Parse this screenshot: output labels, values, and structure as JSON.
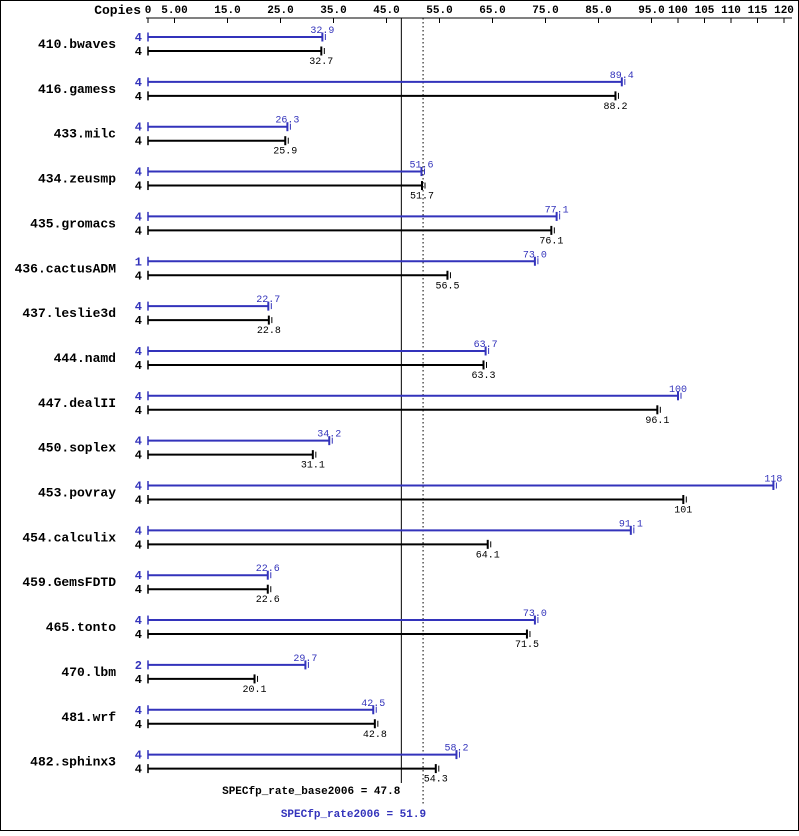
{
  "header": {
    "copies_label": "Copies"
  },
  "summary": {
    "base_label": "SPECfp_rate_base2006 = 47.8",
    "peak_label": "SPECfp_rate2006 = 51.9",
    "base_value": 47.8,
    "peak_value": 51.9
  },
  "colors": {
    "peak_blue": "#3333bb",
    "base_black": "#000000"
  },
  "axis": {
    "xlim": [
      0,
      120
    ],
    "ticks": [
      {
        "value": 0,
        "label": "0"
      },
      {
        "value": 5,
        "label": "5.00"
      },
      {
        "value": 15,
        "label": "15.0"
      },
      {
        "value": 25,
        "label": "25.0"
      },
      {
        "value": 35,
        "label": "35.0"
      },
      {
        "value": 45,
        "label": "45.0"
      },
      {
        "value": 55,
        "label": "55.0"
      },
      {
        "value": 65,
        "label": "65.0"
      },
      {
        "value": 75,
        "label": "75.0"
      },
      {
        "value": 85,
        "label": "85.0"
      },
      {
        "value": 95,
        "label": "95.0"
      },
      {
        "value": 100,
        "label": "100"
      },
      {
        "value": 105,
        "label": "105"
      },
      {
        "value": 110,
        "label": "110"
      },
      {
        "value": 115,
        "label": "115"
      },
      {
        "value": 120,
        "label": "120"
      }
    ]
  },
  "chart_data": {
    "type": "bar",
    "orientation": "horizontal",
    "title": "",
    "xlim": [
      0,
      120
    ],
    "categories": [
      "410.bwaves",
      "416.gamess",
      "433.milc",
      "434.zeusmp",
      "435.gromacs",
      "436.cactusADM",
      "437.leslie3d",
      "444.namd",
      "447.dealII",
      "450.soplex",
      "453.povray",
      "454.calculix",
      "459.GemsFDTD",
      "465.tonto",
      "470.lbm",
      "481.wrf",
      "482.sphinx3"
    ],
    "series": [
      {
        "key": "peak",
        "name": "SPECfp_rate2006 (peak)",
        "color": "#3333bb",
        "copies": [
          "4",
          "4",
          "4",
          "4",
          "4",
          "1",
          "4",
          "4",
          "4",
          "4",
          "4",
          "4",
          "4",
          "4",
          "2",
          "4",
          "4"
        ],
        "values": [
          32.9,
          89.4,
          26.3,
          51.6,
          77.1,
          73.0,
          22.7,
          63.7,
          100,
          34.2,
          118,
          91.1,
          22.6,
          73.0,
          29.7,
          42.5,
          58.2
        ],
        "labels": [
          "32.9",
          "89.4",
          "26.3",
          "51.6",
          "77.1",
          "73.0",
          "22.7",
          "63.7",
          "100",
          "34.2",
          "118",
          "91.1",
          "22.6",
          "73.0",
          "29.7",
          "42.5",
          "58.2"
        ]
      },
      {
        "key": "base",
        "name": "SPECfp_rate_base2006 (base)",
        "color": "#000000",
        "copies": [
          "4",
          "4",
          "4",
          "4",
          "4",
          "4",
          "4",
          "4",
          "4",
          "4",
          "4",
          "4",
          "4",
          "4",
          "4",
          "4",
          "4"
        ],
        "values": [
          32.7,
          88.2,
          25.9,
          51.7,
          76.1,
          56.5,
          22.8,
          63.3,
          96.1,
          31.1,
          101,
          64.1,
          22.6,
          71.5,
          20.1,
          42.8,
          54.3
        ],
        "labels": [
          "32.7",
          "88.2",
          "25.9",
          "51.7",
          "76.1",
          "56.5",
          "22.8",
          "63.3",
          "96.1",
          "31.1",
          "101",
          "64.1",
          "22.6",
          "71.5",
          "20.1",
          "42.8",
          "54.3"
        ]
      }
    ],
    "reference_lines": [
      {
        "label": "SPECfp_rate_base2006 = 47.8",
        "value": 47.8,
        "style": "solid"
      },
      {
        "label": "SPECfp_rate2006 = 51.9",
        "value": 51.9,
        "style": "dotted"
      }
    ]
  }
}
